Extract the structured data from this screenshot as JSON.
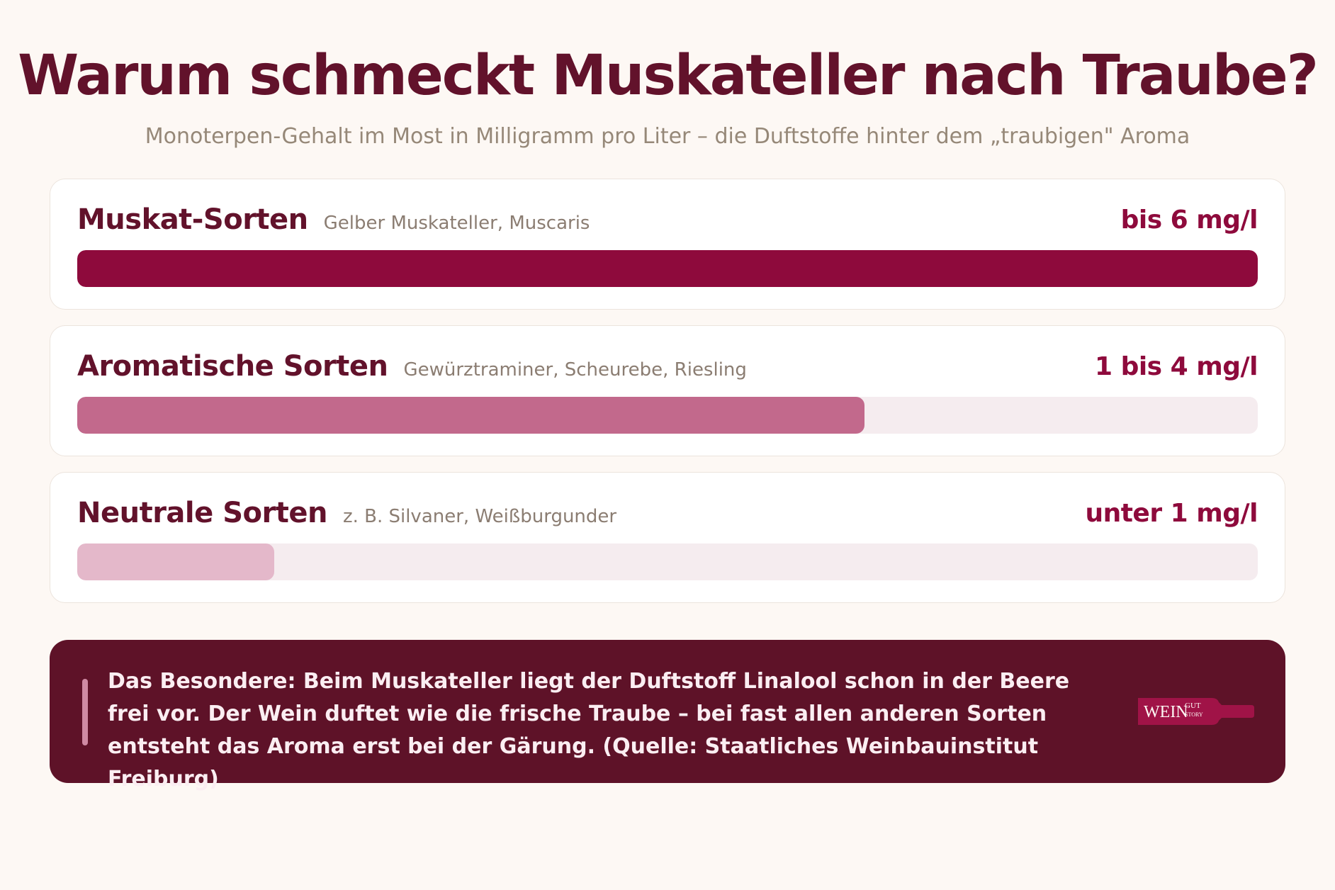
{
  "title": "Warum schmeckt Muskateller nach Traube?",
  "subtitle": "Monoterpen-Gehalt im Most in Milligramm pro Liter – die Duftstoffe hinter dem „traubigen\" Aroma",
  "chart_data": {
    "type": "bar",
    "orientation": "horizontal",
    "max_value": 6,
    "categories": [
      "Muskat-Sorten",
      "Aromatische Sorten",
      "Neutrale Sorten"
    ],
    "examples": [
      "Gelber Muskateller, Muscaris",
      "Gewürztraminer, Scheurebe, Riesling",
      "z. B. Silvaner, Weißburgunder"
    ],
    "value_labels": [
      "bis 6 mg/l",
      "1 bis 4 mg/l",
      "unter 1 mg/l"
    ],
    "values": [
      6,
      4,
      1
    ],
    "colors": [
      "#8e0a3c",
      "#c2698c",
      "#e4b8ca"
    ],
    "track_color": "#f5ecef"
  },
  "note": {
    "text": "Das Besondere: Beim Muskateller liegt der Duftstoff Linalool schon in der Beere frei vor. Der Wein duftet wie die frische Traube – bei fast allen anderen Sorten entsteht das Aroma erst bei der Gärung. (Quelle: Staatliches Weinbauinstitut Freiburg)"
  },
  "logo": {
    "text": "WEIN",
    "small_top": "GUT",
    "small_bottom": "STORY",
    "color": "#a01347"
  }
}
